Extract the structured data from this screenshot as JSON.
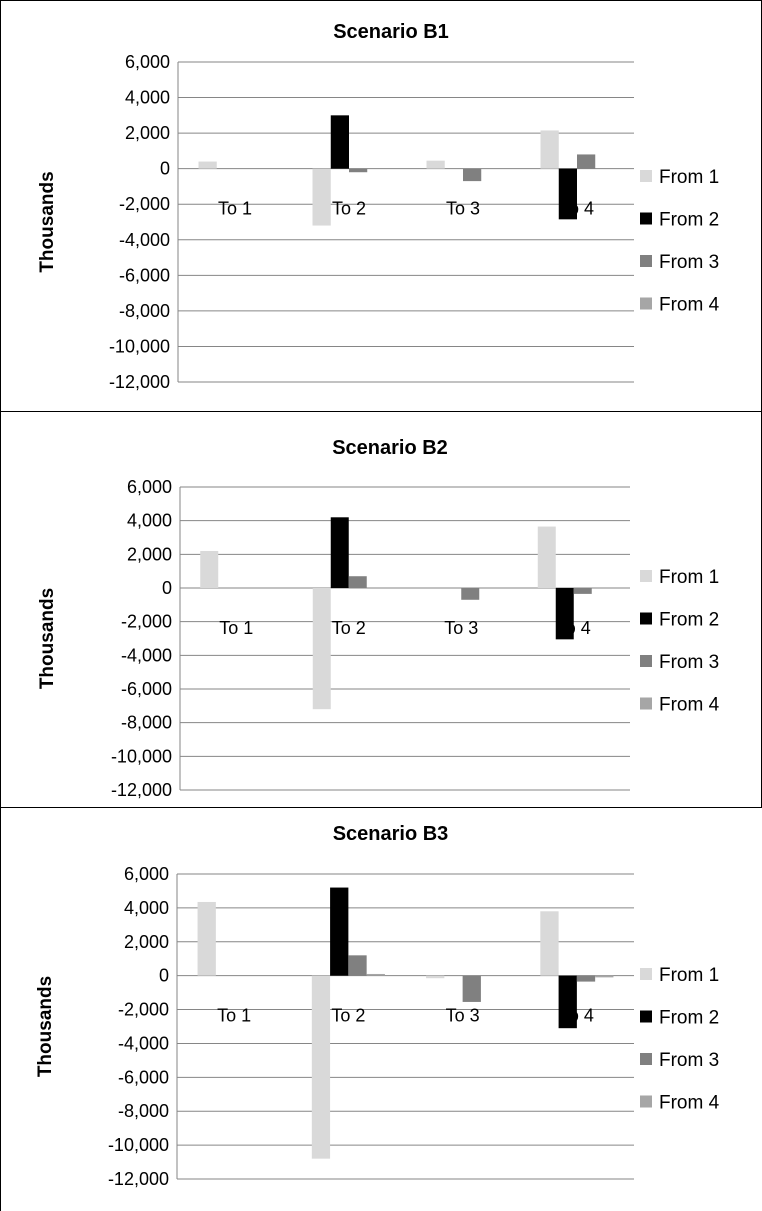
{
  "chart_data": [
    {
      "type": "bar",
      "title": "Scenario B1",
      "ylabel": "Thousands",
      "categories": [
        "To 1",
        "To 2",
        "To 3",
        "To 4"
      ],
      "ylim": [
        -12000,
        6000
      ],
      "yticks": [
        "6,000",
        "4,000",
        "2,000",
        "0",
        "-2,000",
        "-4,000",
        "-6,000",
        "-8,000",
        "-10,000",
        "-12,000"
      ],
      "legend_position": "right",
      "series": [
        {
          "name": "From 1",
          "color": "#d9d9d9",
          "values": [
            400,
            -3200,
            450,
            2150
          ]
        },
        {
          "name": "From 2",
          "color": "#000000",
          "values": [
            0,
            3000,
            0,
            -2850
          ]
        },
        {
          "name": "From 3",
          "color": "#808080",
          "values": [
            0,
            -200,
            -700,
            800
          ]
        },
        {
          "name": "From 4",
          "color": "#a6a6a6",
          "values": [
            0,
            0,
            0,
            0
          ]
        }
      ]
    },
    {
      "type": "bar",
      "title": "Scenario B2",
      "ylabel": "Thousands",
      "categories": [
        "To 1",
        "To 2",
        "To 3",
        "To 4"
      ],
      "ylim": [
        -12000,
        6000
      ],
      "yticks": [
        "6,000",
        "4,000",
        "2,000",
        "0",
        "-2,000",
        "-4,000",
        "-6,000",
        "-8,000",
        "-10,000",
        "-12,000"
      ],
      "legend_position": "right",
      "series": [
        {
          "name": "From 1",
          "color": "#d9d9d9",
          "values": [
            2200,
            -7200,
            0,
            3650
          ]
        },
        {
          "name": "From 2",
          "color": "#000000",
          "values": [
            0,
            4200,
            0,
            -3050
          ]
        },
        {
          "name": "From 3",
          "color": "#808080",
          "values": [
            0,
            700,
            -700,
            -350
          ]
        },
        {
          "name": "From 4",
          "color": "#a6a6a6",
          "values": [
            0,
            0,
            0,
            0
          ]
        }
      ]
    },
    {
      "type": "bar",
      "title": "Scenario B3",
      "ylabel": "Thousands",
      "categories": [
        "To 1",
        "To 2",
        "To 3",
        "To 4"
      ],
      "ylim": [
        -12000,
        6000
      ],
      "yticks": [
        "6,000",
        "4,000",
        "2,000",
        "0",
        "-2,000",
        "-4,000",
        "-6,000",
        "-8,000",
        "-10,000",
        "-12,000"
      ],
      "legend_position": "right",
      "series": [
        {
          "name": "From 1",
          "color": "#d9d9d9",
          "values": [
            4350,
            -10800,
            -150,
            3800
          ]
        },
        {
          "name": "From 2",
          "color": "#000000",
          "values": [
            0,
            5200,
            0,
            -3100
          ]
        },
        {
          "name": "From 3",
          "color": "#808080",
          "values": [
            0,
            1200,
            -1550,
            -350
          ]
        },
        {
          "name": "From 4",
          "color": "#a6a6a6",
          "values": [
            0,
            100,
            0,
            -100
          ]
        }
      ]
    }
  ]
}
